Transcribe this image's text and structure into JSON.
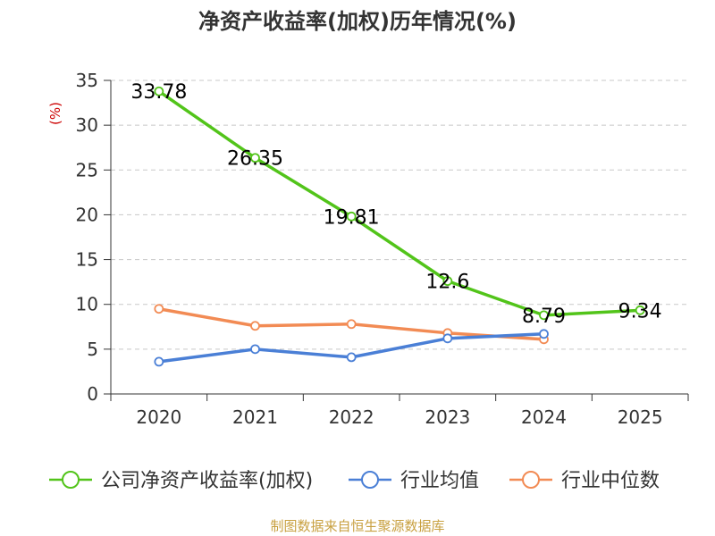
{
  "chart_data": {
    "type": "line",
    "title": "净资产收益率(加权)历年情况(%)",
    "ylabel": "(%)",
    "xlabel": "",
    "categories": [
      "2020",
      "2021",
      "2022",
      "2023",
      "2024",
      "2025"
    ],
    "ylim": [
      0,
      35
    ],
    "yticks": [
      0,
      5,
      10,
      15,
      20,
      25,
      30,
      35
    ],
    "grid": true,
    "legend_position": "bottom",
    "series": [
      {
        "name": "公司净资产收益率(加权)",
        "color": "#52c41a",
        "values": [
          33.78,
          26.35,
          19.81,
          12.6,
          8.79,
          9.34
        ],
        "data_labels": [
          "33.78",
          "26.35",
          "19.81",
          "12.6",
          "8.79",
          "9.34"
        ]
      },
      {
        "name": "行业均值",
        "color": "#4a7fd6",
        "values": [
          3.6,
          5.0,
          4.1,
          6.2,
          6.7,
          null
        ]
      },
      {
        "name": "行业中位数",
        "color": "#f28b54",
        "values": [
          9.5,
          7.6,
          7.8,
          6.8,
          6.1,
          null
        ]
      }
    ],
    "unit_color": "#cc0000",
    "source_text": "制图数据来自恒生聚源数据库",
    "source_color": "#c8a040"
  }
}
